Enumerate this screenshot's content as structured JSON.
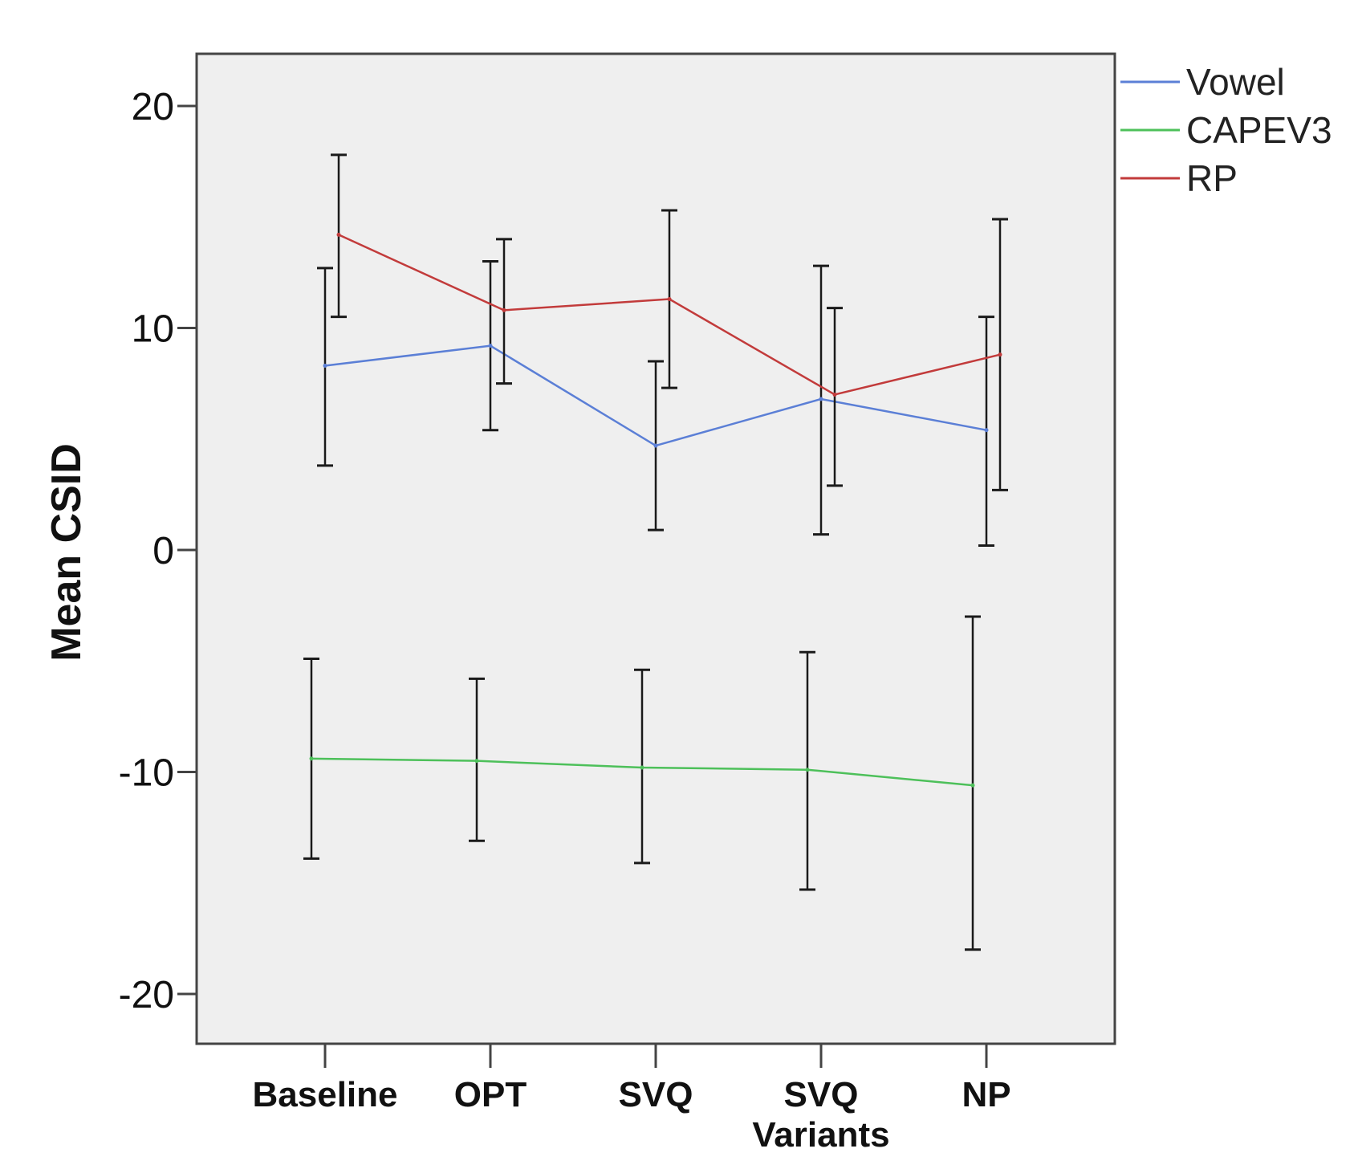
{
  "chart_data": {
    "type": "line",
    "ylabel": "Mean CSID",
    "xlabel": "",
    "ylim": [
      -22.5,
      22
    ],
    "yticks": [
      20,
      10,
      0,
      -10,
      -20
    ],
    "ytick_labels": [
      "20",
      "10",
      "0",
      "-10",
      "-20"
    ],
    "categories": [
      {
        "lines": [
          "Baseline"
        ]
      },
      {
        "lines": [
          "OPT"
        ]
      },
      {
        "lines": [
          "SVQ"
        ]
      },
      {
        "lines": [
          "SVQ",
          "Variants"
        ]
      },
      {
        "lines": [
          "NP"
        ]
      }
    ],
    "legend_position": "top-right",
    "series": [
      {
        "name": "Vowel",
        "color": "#5b7fd6",
        "offset": 0,
        "values": [
          8.3,
          9.2,
          4.7,
          6.8,
          5.4
        ],
        "ci_low": [
          3.8,
          5.4,
          0.9,
          0.7,
          0.2
        ],
        "ci_high": [
          12.7,
          13.0,
          8.5,
          12.8,
          10.5
        ]
      },
      {
        "name": "CAPEV3",
        "color": "#4dc05a",
        "offset": -1,
        "values": [
          -9.4,
          -9.5,
          -9.8,
          -9.9,
          -10.6
        ],
        "ci_low": [
          -13.9,
          -13.1,
          -14.1,
          -15.3,
          -18.0
        ],
        "ci_high": [
          -4.9,
          -5.8,
          -5.4,
          -4.6,
          -3.0
        ]
      },
      {
        "name": "RP",
        "color": "#c23b3b",
        "offset": 1,
        "values": [
          14.2,
          10.8,
          11.3,
          7.0,
          8.8
        ],
        "ci_low": [
          10.5,
          7.5,
          7.3,
          2.9,
          2.7
        ],
        "ci_high": [
          17.8,
          14.0,
          15.3,
          10.9,
          14.9
        ]
      }
    ]
  }
}
